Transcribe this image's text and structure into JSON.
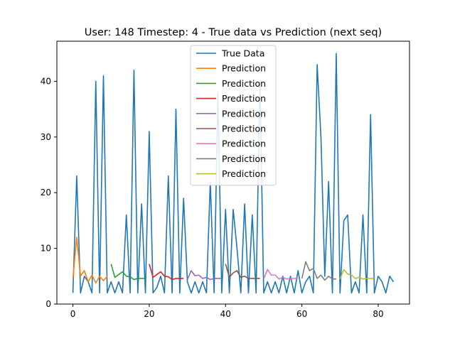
{
  "chart_data": {
    "type": "line",
    "title": "User: 148 Timestep: 4 - True data vs Prediction (next seq)",
    "xlabel": "",
    "ylabel": "",
    "xlim": [
      -4.2,
      88.2
    ],
    "ylim": [
      0,
      47.2
    ],
    "xticks": [
      0,
      20,
      40,
      60,
      80
    ],
    "yticks": [
      0,
      10,
      20,
      30,
      40
    ],
    "grid": false,
    "legend_position": "top-center",
    "true_data": {
      "name": "True Data",
      "color": "#1f77b4",
      "x": [
        0,
        1,
        2,
        3,
        4,
        5,
        6,
        7,
        8,
        9,
        10,
        11,
        12,
        13,
        14,
        15,
        16,
        17,
        18,
        19,
        20,
        21,
        22,
        23,
        24,
        25,
        26,
        27,
        28,
        29,
        30,
        31,
        32,
        33,
        34,
        35,
        36,
        37,
        38,
        39,
        40,
        41,
        42,
        43,
        44,
        45,
        46,
        47,
        48,
        49,
        50,
        51,
        52,
        53,
        54,
        55,
        56,
        57,
        58,
        59,
        60,
        61,
        62,
        63,
        64,
        65,
        66,
        67,
        68,
        69,
        70,
        71,
        72,
        73,
        74,
        75,
        76,
        77,
        78,
        79,
        80,
        81,
        82,
        83,
        84
      ],
      "y": [
        2,
        23,
        2,
        5,
        4,
        2,
        40,
        2,
        41,
        2,
        4,
        2,
        4,
        2,
        16,
        2,
        42,
        2,
        18,
        2,
        31,
        2,
        3,
        5,
        2,
        23,
        2,
        35,
        2,
        19,
        4,
        2,
        4,
        2,
        4,
        2,
        22,
        2,
        38,
        2,
        17,
        2,
        17,
        10,
        2,
        18,
        2,
        16,
        2,
        40,
        2,
        4,
        2,
        4,
        2,
        5,
        2,
        5,
        2,
        6,
        2,
        4,
        5,
        2,
        43,
        30,
        5,
        22,
        2,
        45,
        2,
        15,
        16,
        2,
        4,
        2,
        16,
        2,
        34,
        2,
        5,
        4,
        2,
        5,
        4
      ]
    },
    "predictions": [
      {
        "name": "Prediction",
        "color": "#ff7f0e",
        "x": [
          0,
          1,
          2,
          3,
          4,
          5,
          6,
          7,
          8,
          9
        ],
        "y": [
          4.5,
          12,
          5,
          6,
          4,
          5.2,
          3.8,
          5,
          4.2,
          5
        ]
      },
      {
        "name": "Prediction",
        "color": "#2ca02c",
        "x": [
          10,
          11,
          12,
          13,
          14,
          15,
          16,
          17,
          18,
          19
        ],
        "y": [
          7.2,
          4.8,
          5.3,
          5.8,
          5,
          4.9,
          4.4,
          4.6,
          4.6,
          4.6
        ]
      },
      {
        "name": "Prediction",
        "color": "#d62728",
        "x": [
          20,
          21,
          22,
          23,
          24,
          25,
          26,
          27,
          28,
          29
        ],
        "y": [
          7.2,
          4.8,
          5.3,
          5.8,
          5,
          4.9,
          4.4,
          4.6,
          4.6,
          4.6
        ]
      },
      {
        "name": "Prediction",
        "color": "#9467bd",
        "x": [
          30,
          31,
          32,
          33,
          34,
          35,
          36,
          37,
          38,
          39
        ],
        "y": [
          4.4,
          6,
          5.1,
          5.2,
          4.6,
          4.8,
          4.4,
          4.6,
          4.6,
          4.6
        ]
      },
      {
        "name": "Prediction",
        "color": "#8c564b",
        "x": [
          40,
          41,
          42,
          43,
          44,
          45,
          46,
          47,
          48,
          49
        ],
        "y": [
          7.2,
          4.8,
          5.6,
          6,
          4.8,
          5,
          4.6,
          4.6,
          4.6,
          4.6
        ]
      },
      {
        "name": "Prediction",
        "color": "#e377c2",
        "x": [
          50,
          51,
          52,
          53,
          54,
          55,
          56,
          57,
          58,
          59
        ],
        "y": [
          4.5,
          6.2,
          5.2,
          5.2,
          4.5,
          4.8,
          4.5,
          4.6,
          4.6,
          4.6
        ]
      },
      {
        "name": "Prediction",
        "color": "#7f7f7f",
        "x": [
          60,
          61,
          62,
          63,
          64,
          65,
          66,
          67,
          68,
          69
        ],
        "y": [
          4.6,
          7.6,
          6,
          6.4,
          4.6,
          5.2,
          4.3,
          5,
          4.5,
          4.5
        ]
      },
      {
        "name": "Prediction",
        "color": "#bcbd22",
        "x": [
          70,
          71,
          72,
          73,
          74,
          75,
          76,
          77,
          78,
          79
        ],
        "y": [
          4.5,
          6.2,
          5.4,
          5.2,
          4.6,
          4.8,
          4.5,
          4.6,
          4.6,
          4.6
        ]
      }
    ]
  }
}
